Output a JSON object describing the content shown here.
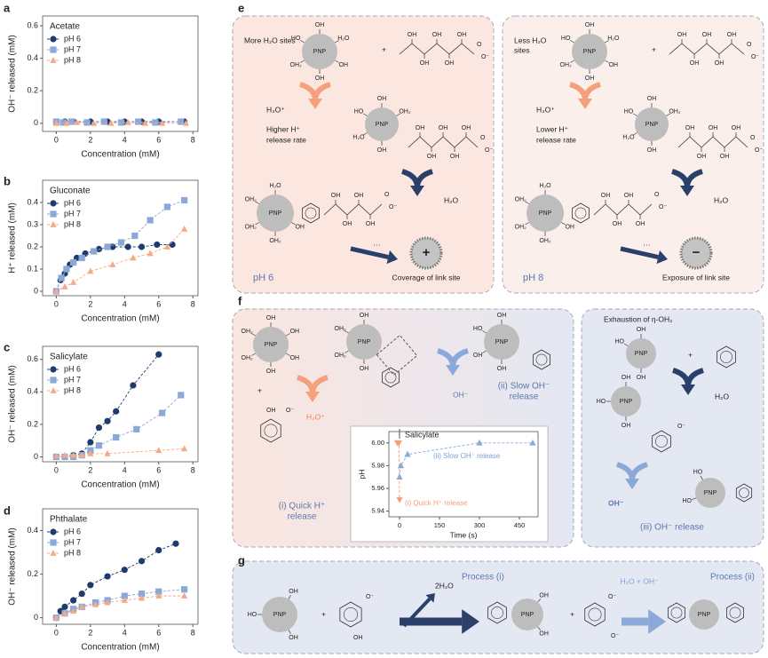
{
  "panel_labels": [
    "a",
    "b",
    "c",
    "d",
    "e",
    "f",
    "g"
  ],
  "chart_data": [
    {
      "type": "line",
      "title": "Acetate",
      "xlabel": "Concentration (mM)",
      "ylabel": "OH⁻ released (mM)",
      "xlim": [
        -0.8,
        8.3
      ],
      "ylim": [
        -0.05,
        0.66
      ],
      "xticks": [
        0,
        2,
        4,
        6,
        8
      ],
      "yticks": [
        0,
        0.2,
        0.4,
        0.6
      ],
      "legend": "upper left",
      "series": [
        {
          "name": "pH 6",
          "color": "#1f3b6e",
          "marker": "circle",
          "x": [
            0,
            0.5,
            1,
            2,
            3,
            4,
            5,
            6,
            7.5
          ],
          "values": [
            0.01,
            0.01,
            0.01,
            0.01,
            0.01,
            0.01,
            0.01,
            0.01,
            0.01
          ]
        },
        {
          "name": "pH 7",
          "color": "#8aa8d8",
          "marker": "square",
          "x": [
            0,
            0.4,
            0.9,
            1.8,
            2.8,
            3.8,
            4.8,
            5.8,
            7.3
          ],
          "values": [
            0.01,
            0.005,
            0.01,
            0.005,
            0.01,
            0.005,
            0.01,
            0.005,
            0.01
          ]
        },
        {
          "name": "pH 8",
          "color": "#f5a985",
          "marker": "triangle",
          "x": [
            0,
            0.6,
            1.2,
            2.2,
            3.2,
            4.2,
            5.2,
            6.2,
            7.6
          ],
          "values": [
            0,
            0,
            0.005,
            0,
            0,
            0.005,
            0,
            0,
            0
          ]
        }
      ]
    },
    {
      "type": "line",
      "title": "Gluconate",
      "xlabel": "Concentration (mM)",
      "ylabel": "H⁺ released (mM)",
      "xlim": [
        -0.8,
        8.3
      ],
      "ylim": [
        -0.02,
        0.5
      ],
      "xticks": [
        0,
        2,
        4,
        6,
        8
      ],
      "yticks": [
        0,
        0.1,
        0.2,
        0.3,
        0.4
      ],
      "legend": "upper left",
      "series": [
        {
          "name": "pH 6",
          "color": "#1f3b6e",
          "marker": "circle",
          "x": [
            0,
            0.25,
            0.5,
            0.8,
            1.2,
            1.7,
            2.5,
            3.3,
            4.2,
            5,
            5.9,
            6.8
          ],
          "values": [
            0,
            0.05,
            0.08,
            0.12,
            0.15,
            0.17,
            0.19,
            0.2,
            0.2,
            0.2,
            0.21,
            0.21
          ]
        },
        {
          "name": "pH 7",
          "color": "#8aa8d8",
          "marker": "square",
          "x": [
            0,
            0.3,
            0.6,
            1,
            1.5,
            2.2,
            3,
            3.8,
            4.6,
            5.5,
            6.5,
            7.5
          ],
          "values": [
            0,
            0.06,
            0.1,
            0.13,
            0.15,
            0.18,
            0.2,
            0.22,
            0.25,
            0.32,
            0.38,
            0.41
          ]
        },
        {
          "name": "pH 8",
          "color": "#f5a985",
          "marker": "triangle",
          "x": [
            0,
            0.5,
            1,
            2,
            3.3,
            4.5,
            5.5,
            6.5,
            7.5
          ],
          "values": [
            0,
            0.02,
            0.04,
            0.09,
            0.12,
            0.15,
            0.17,
            0.2,
            0.28
          ]
        }
      ]
    },
    {
      "type": "line",
      "title": "Salicylate",
      "xlabel": "Concentration (mM)",
      "ylabel": "OH⁻ released (mM)",
      "xlim": [
        -0.8,
        8.3
      ],
      "ylim": [
        -0.03,
        0.68
      ],
      "xticks": [
        0,
        2,
        4,
        6,
        8
      ],
      "yticks": [
        0,
        0.2,
        0.4,
        0.6
      ],
      "legend": "upper left",
      "series": [
        {
          "name": "pH 6",
          "color": "#1f3b6e",
          "marker": "circle",
          "x": [
            0,
            0.5,
            1,
            1.5,
            2,
            2.5,
            3,
            3.5,
            4.5,
            6
          ],
          "values": [
            0,
            0,
            0.01,
            0.02,
            0.09,
            0.18,
            0.22,
            0.28,
            0.44,
            0.63
          ]
        },
        {
          "name": "pH 7",
          "color": "#8aa8d8",
          "marker": "square",
          "x": [
            0,
            0.5,
            1,
            1.5,
            2,
            2.5,
            3.5,
            4.7,
            6.2,
            7.3
          ],
          "values": [
            0,
            0,
            0,
            0.01,
            0.04,
            0.07,
            0.12,
            0.17,
            0.27,
            0.38
          ]
        },
        {
          "name": "pH 8",
          "color": "#f5a985",
          "marker": "triangle",
          "x": [
            0,
            0.5,
            1,
            1.5,
            2,
            3,
            6,
            7.5
          ],
          "values": [
            0.005,
            0.01,
            0.01,
            0.01,
            0.02,
            0.02,
            0.04,
            0.05
          ]
        }
      ]
    },
    {
      "type": "line",
      "title": "Phthalate",
      "xlabel": "Concentration (mM)",
      "ylabel": "OH⁻ released (mM)",
      "xlim": [
        -0.8,
        8.3
      ],
      "ylim": [
        -0.03,
        0.5
      ],
      "xticks": [
        0,
        2,
        4,
        6,
        8
      ],
      "yticks": [
        0,
        0.2,
        0.4
      ],
      "legend": "upper left",
      "series": [
        {
          "name": "pH 6",
          "color": "#1f3b6e",
          "marker": "circle",
          "x": [
            0,
            0.25,
            0.5,
            1,
            1.5,
            2,
            3,
            4,
            5,
            6,
            7
          ],
          "values": [
            0,
            0.03,
            0.05,
            0.08,
            0.11,
            0.15,
            0.19,
            0.22,
            0.26,
            0.31,
            0.34
          ]
        },
        {
          "name": "pH 7",
          "color": "#8aa8d8",
          "marker": "square",
          "x": [
            0,
            0.5,
            1,
            1.5,
            2.3,
            3,
            4,
            5,
            6,
            7.5
          ],
          "values": [
            0,
            0.02,
            0.04,
            0.05,
            0.07,
            0.08,
            0.1,
            0.11,
            0.12,
            0.13
          ]
        },
        {
          "name": "pH 8",
          "color": "#f5a985",
          "marker": "triangle",
          "x": [
            0,
            0.5,
            1,
            1.5,
            2.3,
            3,
            4,
            5,
            6,
            7.5
          ],
          "values": [
            0,
            0.02,
            0.03,
            0.05,
            0.06,
            0.07,
            0.08,
            0.09,
            0.1,
            0.1
          ]
        }
      ]
    },
    {
      "type": "line",
      "xlabel": "Time (s)",
      "ylabel": "pH",
      "xlim": [
        -40,
        520
      ],
      "ylim": [
        5.935,
        6.01
      ],
      "xticks": [
        0,
        150,
        300,
        450
      ],
      "yticks": [
        5.94,
        5.96,
        5.98,
        {
          "value": 6,
          "label": "6.00"
        }
      ],
      "annotations": [
        "Salicylate",
        "(ii) Slow OH⁻ release",
        "(i) Quick H⁺ release"
      ],
      "series": [
        {
          "color": "#f5a07a",
          "marker": "triangle-down",
          "x": [
            -8,
            -2,
            0
          ],
          "values": [
            6.0,
            6.0,
            5.95
          ]
        },
        {
          "color": "#8aa8d8",
          "marker": "triangle",
          "x": [
            0,
            5,
            30,
            300,
            500
          ],
          "values": [
            5.97,
            5.98,
            5.99,
            6.0,
            6.0
          ]
        }
      ]
    }
  ],
  "chem": {
    "pnp": "PNP",
    "oh": "OH",
    "ho": "HO",
    "h2o": "H₂O",
    "oh2": "OH₂",
    "o": "O",
    "o_minus": "O⁻",
    "dots": "···"
  },
  "panel_e": {
    "left": {
      "sites": [
        "More H₂O sites"
      ],
      "plus": "+",
      "acid": "H₃O⁺",
      "rate": [
        "Higher H⁺",
        "release rate"
      ],
      "product": "H₂O",
      "charge": "+",
      "outcome": "Coverage of link site",
      "ph": "pH 6"
    },
    "right": {
      "sites": [
        "Less H₂O",
        "sites"
      ],
      "plus": "+",
      "acid": "H₃O⁺",
      "rate": [
        "Lower H⁺",
        "release rate"
      ],
      "product": "H₂O",
      "charge": "−",
      "outcome": "Exposure of link site",
      "ph": "pH 8"
    }
  },
  "panel_f": {
    "plus": "+",
    "acid": "H₃O⁺",
    "base": "OH⁻",
    "step_ii": [
      "(ii) Slow OH⁻",
      "release"
    ],
    "step_i": [
      "(i) Quick H⁺",
      "release"
    ],
    "exhaustion": "Exhaustion of η-OH₂",
    "product": "H₂O",
    "base2": "OH⁻",
    "step_iii": "(iii) OH⁻ release"
  },
  "panel_g": {
    "plus": "+",
    "water": "2H₂O",
    "process_i": "Process (i)",
    "reagent": "H₂O + OH⁻",
    "process_ii": "Process (ii)"
  }
}
